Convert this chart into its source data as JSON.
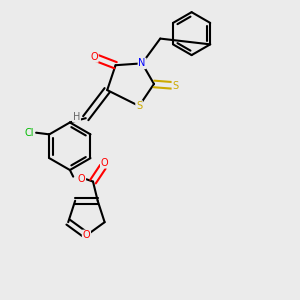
{
  "bg_color": "#ebebeb",
  "bond_color": "#000000",
  "atom_colors": {
    "O": "#ff0000",
    "N": "#0000ff",
    "S": "#ccaa00",
    "Cl": "#00bb00",
    "H": "#666666",
    "C": "#000000"
  }
}
